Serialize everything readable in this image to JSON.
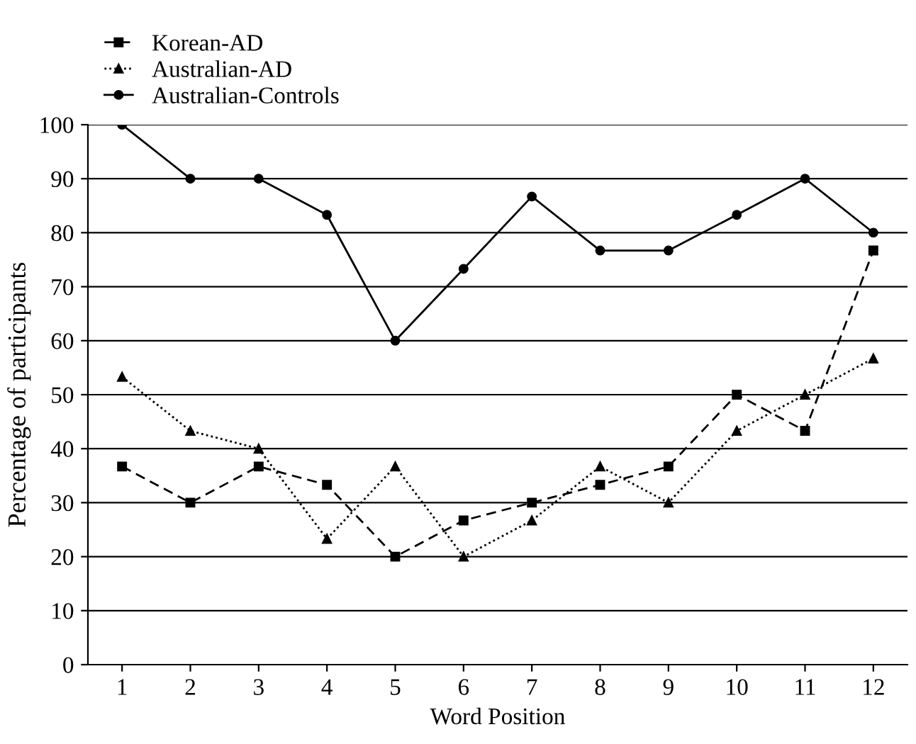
{
  "chart_data": {
    "type": "line",
    "xlabel": "Word Position",
    "ylabel": "Percentage of participants",
    "categories": [
      "1",
      "2",
      "3",
      "4",
      "5",
      "6",
      "7",
      "8",
      "9",
      "10",
      "11",
      "12"
    ],
    "ylim": [
      0,
      100
    ],
    "yticks": [
      0,
      10,
      20,
      30,
      40,
      50,
      60,
      70,
      80,
      90,
      100
    ],
    "grid": "y",
    "legend": "top left",
    "series": [
      {
        "name": "Korean-AD",
        "color": "#000000",
        "marker": "square",
        "line_style": "dashed",
        "values": [
          36.7,
          30,
          36.7,
          33.3,
          20,
          26.7,
          30,
          33.3,
          36.7,
          50,
          43.3,
          76.7
        ]
      },
      {
        "name": "Australian-AD",
        "color": "#000000",
        "marker": "triangle",
        "line_style": "dotted",
        "values": [
          53.3,
          43.3,
          40,
          23.3,
          36.7,
          20,
          26.7,
          36.7,
          30,
          43.3,
          50,
          56.7
        ]
      },
      {
        "name": "Australian-Controls",
        "color": "#000000",
        "marker": "circle",
        "line_style": "solid",
        "values": [
          100,
          90,
          90,
          83.3,
          60,
          73.3,
          86.7,
          76.7,
          76.7,
          83.3,
          90,
          80
        ]
      }
    ]
  }
}
